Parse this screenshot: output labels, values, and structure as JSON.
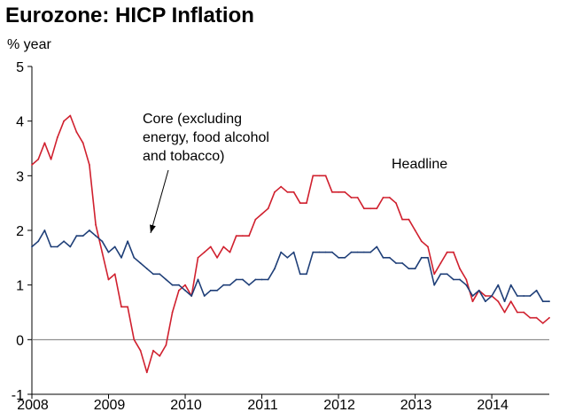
{
  "chart_data": {
    "type": "line",
    "title": "Eurozone: HICP Inflation",
    "ylabel": "% year",
    "ylim": [
      -1,
      5
    ],
    "yticks": [
      -1,
      0,
      1,
      2,
      3,
      4,
      5
    ],
    "xlim": [
      2008,
      2014.75
    ],
    "xticks": [
      "2008",
      "2009",
      "2010",
      "2011",
      "2012",
      "2013",
      "2014"
    ],
    "grid": false,
    "zero_line": true,
    "annotations": [
      {
        "name": "core",
        "lines": [
          "Core (excluding",
          "energy, food alcohol",
          "and tobacco)"
        ],
        "arrow": true
      },
      {
        "name": "headline",
        "lines": [
          "Headline"
        ],
        "arrow": false
      }
    ],
    "series": [
      {
        "name": "Headline",
        "color": "#d0202e",
        "x": [
          2008.0,
          2008.083,
          2008.167,
          2008.25,
          2008.333,
          2008.417,
          2008.5,
          2008.583,
          2008.667,
          2008.75,
          2008.833,
          2008.917,
          2009.0,
          2009.083,
          2009.167,
          2009.25,
          2009.333,
          2009.417,
          2009.5,
          2009.583,
          2009.667,
          2009.75,
          2009.833,
          2009.917,
          2010.0,
          2010.083,
          2010.167,
          2010.25,
          2010.333,
          2010.417,
          2010.5,
          2010.583,
          2010.667,
          2010.75,
          2010.833,
          2010.917,
          2011.0,
          2011.083,
          2011.167,
          2011.25,
          2011.333,
          2011.417,
          2011.5,
          2011.583,
          2011.667,
          2011.75,
          2011.833,
          2011.917,
          2012.0,
          2012.083,
          2012.167,
          2012.25,
          2012.333,
          2012.417,
          2012.5,
          2012.583,
          2012.667,
          2012.75,
          2012.833,
          2012.917,
          2013.0,
          2013.083,
          2013.167,
          2013.25,
          2013.333,
          2013.417,
          2013.5,
          2013.583,
          2013.667,
          2013.75,
          2013.833,
          2013.917,
          2014.0,
          2014.083,
          2014.167,
          2014.25,
          2014.333,
          2014.417,
          2014.5,
          2014.583,
          2014.667,
          2014.75
        ],
        "values": [
          3.2,
          3.3,
          3.6,
          3.3,
          3.7,
          4.0,
          4.1,
          3.8,
          3.6,
          3.2,
          2.1,
          1.6,
          1.1,
          1.2,
          0.6,
          0.6,
          0.0,
          -0.2,
          -0.6,
          -0.2,
          -0.3,
          -0.1,
          0.5,
          0.9,
          1.0,
          0.8,
          1.5,
          1.6,
          1.7,
          1.5,
          1.7,
          1.6,
          1.9,
          1.9,
          1.9,
          2.2,
          2.3,
          2.4,
          2.7,
          2.8,
          2.7,
          2.7,
          2.5,
          2.5,
          3.0,
          3.0,
          3.0,
          2.7,
          2.7,
          2.7,
          2.6,
          2.6,
          2.4,
          2.4,
          2.4,
          2.6,
          2.6,
          2.5,
          2.2,
          2.2,
          2.0,
          1.8,
          1.7,
          1.2,
          1.4,
          1.6,
          1.6,
          1.3,
          1.1,
          0.7,
          0.9,
          0.8,
          0.8,
          0.7,
          0.5,
          0.7,
          0.5,
          0.5,
          0.4,
          0.4,
          0.3,
          0.4
        ]
      },
      {
        "name": "Core (excluding energy, food alcohol and tobacco)",
        "color": "#1f3f78",
        "x": [
          2008.0,
          2008.083,
          2008.167,
          2008.25,
          2008.333,
          2008.417,
          2008.5,
          2008.583,
          2008.667,
          2008.75,
          2008.833,
          2008.917,
          2009.0,
          2009.083,
          2009.167,
          2009.25,
          2009.333,
          2009.417,
          2009.5,
          2009.583,
          2009.667,
          2009.75,
          2009.833,
          2009.917,
          2010.0,
          2010.083,
          2010.167,
          2010.25,
          2010.333,
          2010.417,
          2010.5,
          2010.583,
          2010.667,
          2010.75,
          2010.833,
          2010.917,
          2011.0,
          2011.083,
          2011.167,
          2011.25,
          2011.333,
          2011.417,
          2011.5,
          2011.583,
          2011.667,
          2011.75,
          2011.833,
          2011.917,
          2012.0,
          2012.083,
          2012.167,
          2012.25,
          2012.333,
          2012.417,
          2012.5,
          2012.583,
          2012.667,
          2012.75,
          2012.833,
          2012.917,
          2013.0,
          2013.083,
          2013.167,
          2013.25,
          2013.333,
          2013.417,
          2013.5,
          2013.583,
          2013.667,
          2013.75,
          2013.833,
          2013.917,
          2014.0,
          2014.083,
          2014.167,
          2014.25,
          2014.333,
          2014.417,
          2014.5,
          2014.583,
          2014.667,
          2014.75
        ],
        "values": [
          1.7,
          1.8,
          2.0,
          1.7,
          1.7,
          1.8,
          1.7,
          1.9,
          1.9,
          2.0,
          1.9,
          1.8,
          1.6,
          1.7,
          1.5,
          1.8,
          1.5,
          1.4,
          1.3,
          1.2,
          1.2,
          1.1,
          1.0,
          1.0,
          0.9,
          0.8,
          1.1,
          0.8,
          0.9,
          0.9,
          1.0,
          1.0,
          1.1,
          1.1,
          1.0,
          1.1,
          1.1,
          1.1,
          1.3,
          1.6,
          1.5,
          1.6,
          1.2,
          1.2,
          1.6,
          1.6,
          1.6,
          1.6,
          1.5,
          1.5,
          1.6,
          1.6,
          1.6,
          1.6,
          1.7,
          1.5,
          1.5,
          1.4,
          1.4,
          1.3,
          1.3,
          1.5,
          1.5,
          1.0,
          1.2,
          1.2,
          1.1,
          1.1,
          1.0,
          0.8,
          0.9,
          0.7,
          0.8,
          1.0,
          0.7,
          1.0,
          0.8,
          0.8,
          0.8,
          0.9,
          0.7,
          0.7
        ]
      }
    ]
  }
}
